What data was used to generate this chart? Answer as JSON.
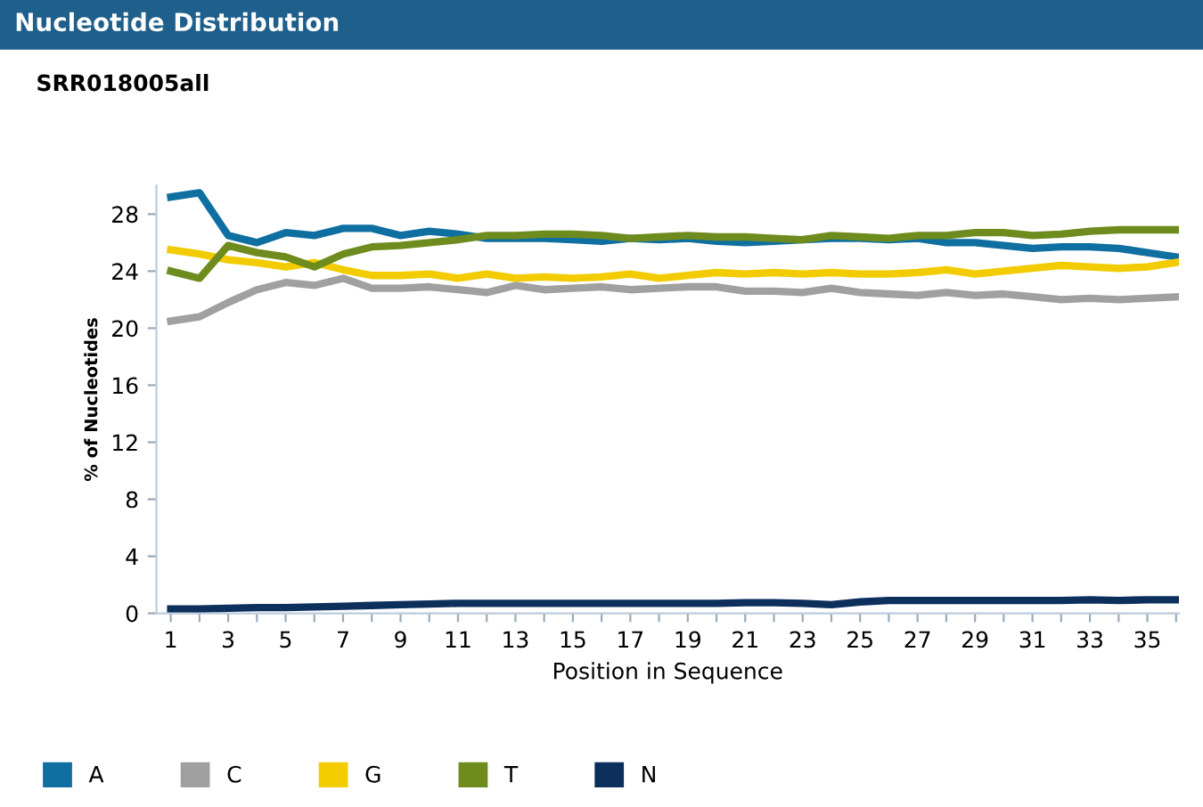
{
  "chart_data": {
    "type": "line",
    "title": "Nucleotide Distribution",
    "subtitle": "SRR018005all",
    "xlabel": "Position in Sequence",
    "ylabel": "% of Nucleotides",
    "x": [
      1,
      2,
      3,
      4,
      5,
      6,
      7,
      8,
      9,
      10,
      11,
      12,
      13,
      14,
      15,
      16,
      17,
      18,
      19,
      20,
      21,
      22,
      23,
      24,
      25,
      26,
      27,
      28,
      29,
      30,
      31,
      32,
      33,
      34,
      35,
      36
    ],
    "series": [
      {
        "name": "A",
        "color": "#0f6fa0",
        "values": [
          29.2,
          29.5,
          26.5,
          26.0,
          26.7,
          26.5,
          27.0,
          27.0,
          26.5,
          26.8,
          26.6,
          26.3,
          26.3,
          26.3,
          26.2,
          26.1,
          26.3,
          26.2,
          26.3,
          26.1,
          26.0,
          26.1,
          26.2,
          26.3,
          26.3,
          26.2,
          26.3,
          26.0,
          26.0,
          25.8,
          25.6,
          25.7,
          25.7,
          25.6,
          25.3,
          25.0
        ]
      },
      {
        "name": "C",
        "color": "#a0a0a0",
        "values": [
          20.5,
          20.8,
          21.8,
          22.7,
          23.2,
          23.0,
          23.5,
          22.8,
          22.8,
          22.9,
          22.7,
          22.5,
          23.0,
          22.7,
          22.8,
          22.9,
          22.7,
          22.8,
          22.9,
          22.9,
          22.6,
          22.6,
          22.5,
          22.8,
          22.5,
          22.4,
          22.3,
          22.5,
          22.3,
          22.4,
          22.2,
          22.0,
          22.1,
          22.0,
          22.1,
          22.2
        ]
      },
      {
        "name": "G",
        "color": "#f2cc00",
        "values": [
          25.5,
          25.2,
          24.8,
          24.6,
          24.3,
          24.6,
          24.1,
          23.7,
          23.7,
          23.8,
          23.5,
          23.8,
          23.5,
          23.6,
          23.5,
          23.6,
          23.8,
          23.5,
          23.7,
          23.9,
          23.8,
          23.9,
          23.8,
          23.9,
          23.8,
          23.8,
          23.9,
          24.1,
          23.8,
          24.0,
          24.2,
          24.4,
          24.3,
          24.2,
          24.3,
          24.6
        ]
      },
      {
        "name": "T",
        "color": "#6e8c1e",
        "values": [
          24.0,
          23.5,
          25.8,
          25.3,
          25.0,
          24.3,
          25.2,
          25.7,
          25.8,
          26.0,
          26.2,
          26.5,
          26.5,
          26.6,
          26.6,
          26.5,
          26.3,
          26.4,
          26.5,
          26.4,
          26.4,
          26.3,
          26.2,
          26.5,
          26.4,
          26.3,
          26.5,
          26.5,
          26.7,
          26.7,
          26.5,
          26.6,
          26.8,
          26.9,
          26.9,
          26.9
        ]
      },
      {
        "name": "N",
        "color": "#0d2f5c",
        "values": [
          0.3,
          0.3,
          0.35,
          0.4,
          0.4,
          0.45,
          0.5,
          0.55,
          0.6,
          0.65,
          0.7,
          0.7,
          0.7,
          0.7,
          0.7,
          0.7,
          0.7,
          0.7,
          0.7,
          0.7,
          0.75,
          0.75,
          0.7,
          0.6,
          0.8,
          0.9,
          0.9,
          0.9,
          0.9,
          0.9,
          0.9,
          0.9,
          0.95,
          0.9,
          0.95,
          0.95
        ]
      }
    ],
    "xlim": [
      0.5,
      36.1
    ],
    "ylim": [
      0,
      30
    ],
    "xticks": [
      1,
      {
        "value": 2,
        "label": null
      },
      3,
      {
        "value": 4,
        "label": null
      },
      5,
      {
        "value": 6,
        "label": null
      },
      7,
      {
        "value": 8,
        "label": null
      },
      9,
      {
        "value": 10,
        "label": null
      },
      11,
      {
        "value": 12,
        "label": null
      },
      13,
      {
        "value": 14,
        "label": null
      },
      15,
      {
        "value": 16,
        "label": null
      },
      17,
      {
        "value": 18,
        "label": null
      },
      19,
      {
        "value": 20,
        "label": null
      },
      21,
      {
        "value": 22,
        "label": null
      },
      23,
      {
        "value": 24,
        "label": null
      },
      25,
      {
        "value": 26,
        "label": null
      },
      27,
      {
        "value": 28,
        "label": null
      },
      29,
      {
        "value": 30,
        "label": null
      },
      31,
      {
        "value": 32,
        "label": null
      },
      33,
      {
        "value": 34,
        "label": null
      },
      35,
      {
        "value": 36,
        "label": null
      }
    ],
    "yticks": [
      0,
      4,
      8,
      12,
      16,
      20,
      24,
      28
    ],
    "legend": "bottom left",
    "grid": false,
    "marker": "none",
    "line_style": "solid"
  }
}
